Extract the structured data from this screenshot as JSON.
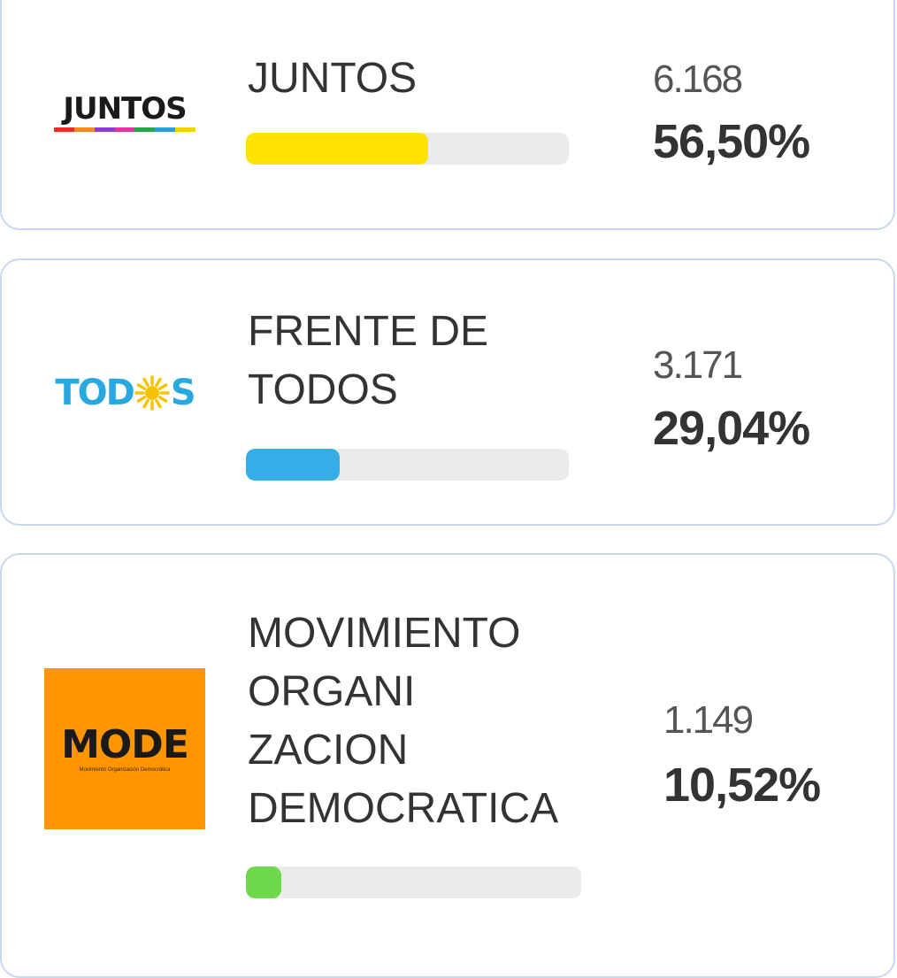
{
  "parties": [
    {
      "name": "JUNTOS",
      "logo_text": "JUNTOS",
      "votes": "6.168",
      "percent": "56,50%",
      "bar_fraction": 0.565,
      "bar_color": "#ffe300",
      "logo_stripe_colors": [
        "#e4322b",
        "#f28a1e",
        "#8a3fd1",
        "#e6339b",
        "#2aa64a",
        "#2c9fd8",
        "#f6d300"
      ]
    },
    {
      "name": "FRENTE DE\nTODOS",
      "logo_text_left": "TOD",
      "logo_text_right": "S",
      "votes": "3.171",
      "percent": "29,04%",
      "bar_fraction": 0.2904,
      "bar_color": "#33aee8",
      "logo_color": "#29a8e0",
      "logo_sun_color": "#f5c400"
    },
    {
      "name": "MOVIMIENTO\nORGANI\nZACION\nDEMOCRATICA",
      "logo_text": "MODE",
      "logo_subtext": "Movimiento Organización Democrática",
      "votes": "1.149",
      "percent": "10,52%",
      "bar_fraction": 0.1052,
      "bar_color": "#6fd94c",
      "logo_bg": "#ff9500"
    }
  ]
}
